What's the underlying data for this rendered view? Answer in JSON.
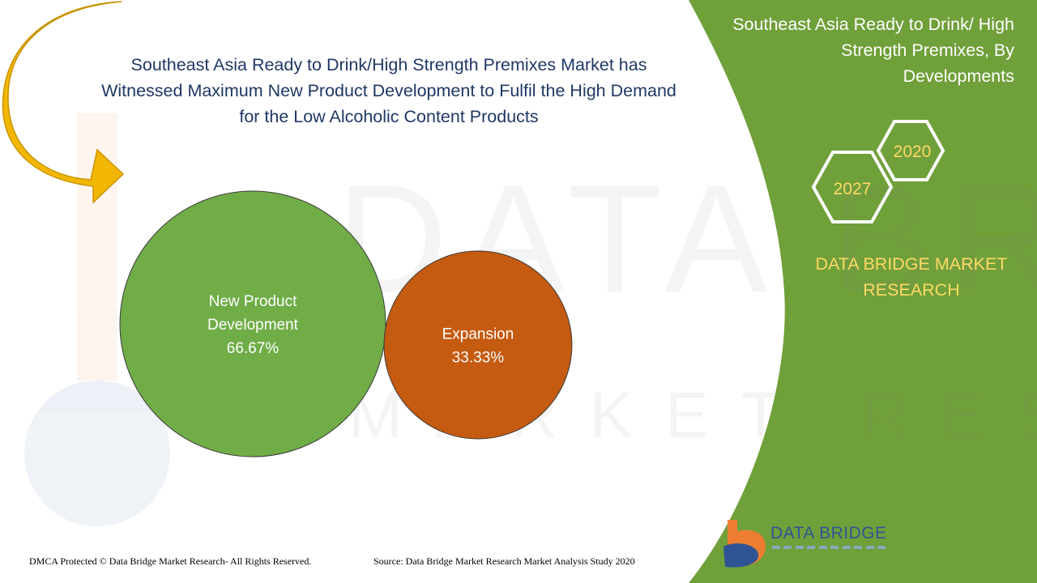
{
  "headline": "Southeast Asia Ready to Drink/High Strength Premixes Market has Witnessed Maximum New Product Development to Fulfil the High Demand for the Low Alcoholic Content Products",
  "side_panel": {
    "title": "Southeast Asia Ready to Drink/ High Strength Premixes, By Developments",
    "year_a": "2020",
    "year_b": "2027",
    "brand": "DATA BRIDGE MARKET RESEARCH"
  },
  "watermark": {
    "line1": "DATA BRIDGE",
    "line2": "MARKET RESEARCH"
  },
  "footer": {
    "left": "DMCA Protected © Data Bridge Market Research- All Rights Reserved.",
    "right": "Source: Data Bridge Market Research Market Analysis Study 2020"
  },
  "logo": {
    "text": "DATA BRIDGE"
  },
  "colors": {
    "panel_green": "#70a03a",
    "bubble_green": "#70ad47",
    "bubble_orange": "#c55a11",
    "arrow_gold": "#f2b705",
    "headline_blue": "#1f3864",
    "accent_yellow": "#ffd966"
  },
  "chart_data": {
    "type": "bubble",
    "title": "",
    "series": [
      {
        "name": "New Product Development",
        "label_lines": [
          "New Product",
          "Development"
        ],
        "value": 66.67,
        "display": "66.67%",
        "color": "#70ad47"
      },
      {
        "name": "Expansion",
        "label_lines": [
          "Expansion"
        ],
        "value": 33.33,
        "display": "33.33%",
        "color": "#c55a11"
      }
    ]
  }
}
